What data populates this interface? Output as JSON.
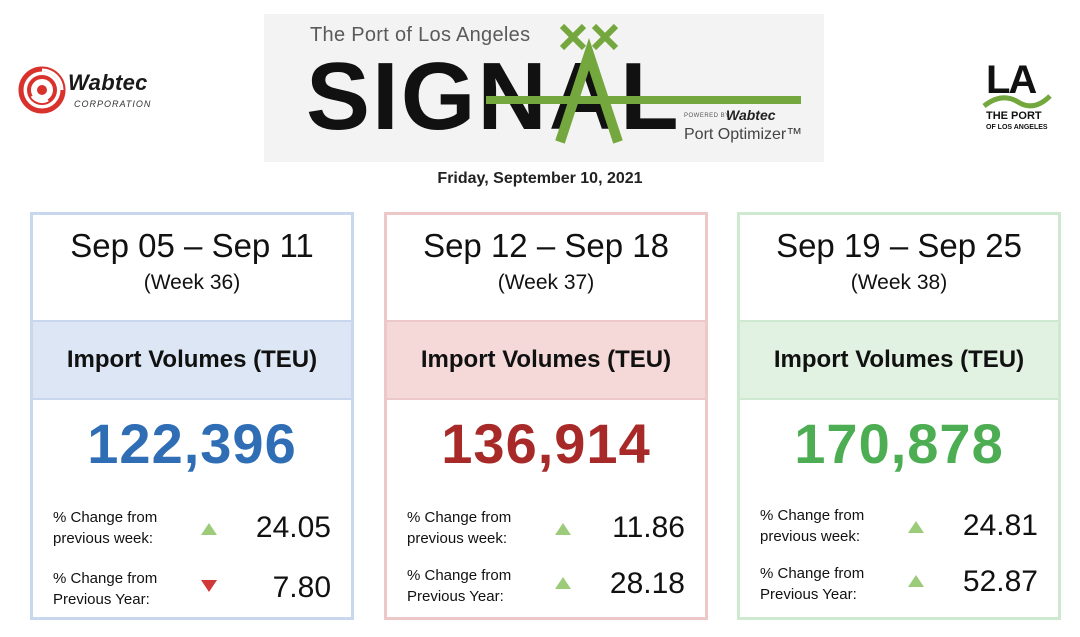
{
  "header": {
    "wabtec_logo": {
      "name": "Wabtec",
      "sub": "CORPORATION"
    },
    "banner": {
      "port_name": "The Port of Los Angeles",
      "title": "SIGNAL",
      "powered_by": "POWERED BY",
      "powered_brand": "Wabtec",
      "product": "Port Optimizer™"
    },
    "la_logo": {
      "mark": "LA",
      "line1": "THE PORT",
      "line2": "OF LOS ANGELES"
    },
    "date": "Friday, September 10, 2021"
  },
  "cards": [
    {
      "range": "Sep 05 – Sep 11",
      "week": "(Week 36)",
      "heading": "Import Volumes (TEU)",
      "value": "122,396",
      "value_color": "#2f6db5",
      "band_color": "#dde6f4",
      "border_color": "#c9d7ee",
      "rows": [
        {
          "label_1": "% Change from",
          "label_2": "previous week:",
          "direction": "up",
          "value": "24.05"
        },
        {
          "label_1": "% Change from",
          "label_2": "Previous Year:",
          "direction": "down",
          "value": "7.80"
        }
      ]
    },
    {
      "range": "Sep 12 – Sep 18",
      "week": "(Week 37)",
      "heading": "Import Volumes (TEU)",
      "value": "136,914",
      "value_color": "#a72a28",
      "band_color": "#f4d9d8",
      "border_color": "#ecc9c8",
      "rows": [
        {
          "label_1": "% Change from",
          "label_2": "previous week:",
          "direction": "up",
          "value": "11.86"
        },
        {
          "label_1": "% Change from",
          "label_2": "Previous Year:",
          "direction": "up",
          "value": "28.18"
        }
      ]
    },
    {
      "range": "Sep 19 – Sep 25",
      "week": "(Week 38)",
      "heading": "Import Volumes (TEU)",
      "value": "170,878",
      "value_color": "#4cad52",
      "band_color": "#e1f1e2",
      "border_color": "#cfe8d0",
      "rows": [
        {
          "label_1": "% Change from",
          "label_2": "previous week:",
          "direction": "up",
          "value": "24.81"
        },
        {
          "label_1": "% Change from",
          "label_2": "Previous Year:",
          "direction": "up",
          "value": "52.87"
        }
      ]
    }
  ]
}
